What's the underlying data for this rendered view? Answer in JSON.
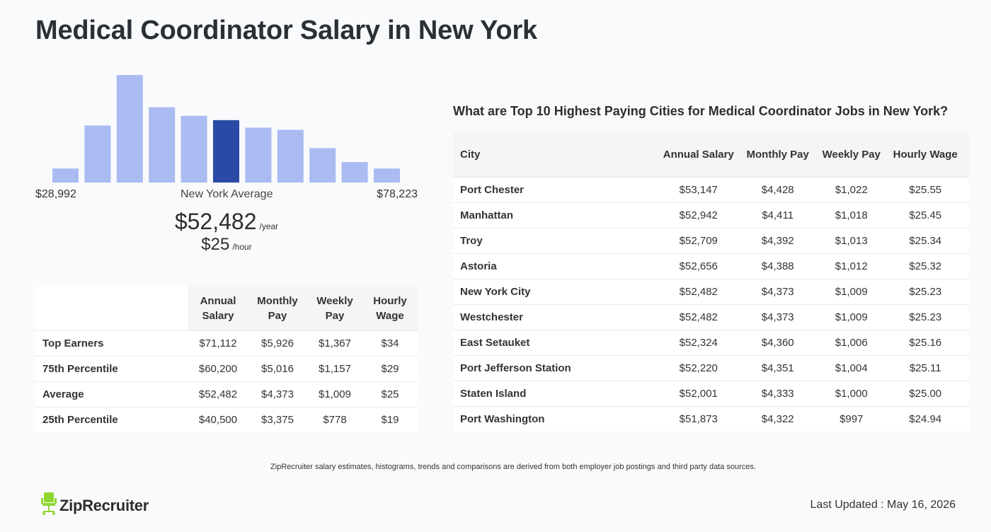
{
  "page": {
    "title": "Medical Coordinator Salary in New York"
  },
  "histogram": {
    "bars": [
      0.13,
      0.53,
      1.0,
      0.7,
      0.62,
      0.58,
      0.51,
      0.49,
      0.32,
      0.19,
      0.13
    ],
    "highlight_index": 5,
    "color": "#aabbf2",
    "highlight_color": "#2a4aa5",
    "min_label": "$28,992",
    "avg_label": "New York Average",
    "max_label": "$78,223"
  },
  "summary": {
    "annual": "$52,482",
    "annual_unit": "/year",
    "hourly": "$25",
    "hourly_unit": "/hour"
  },
  "percentile_table": {
    "headers": [
      "Annual Salary",
      "Monthly Pay",
      "Weekly Pay",
      "Hourly Wage"
    ],
    "rows": [
      {
        "label": "Top Earners",
        "values": [
          "$71,112",
          "$5,926",
          "$1,367",
          "$34"
        ]
      },
      {
        "label": "75th Percentile",
        "values": [
          "$60,200",
          "$5,016",
          "$1,157",
          "$29"
        ]
      },
      {
        "label": "Average",
        "values": [
          "$52,482",
          "$4,373",
          "$1,009",
          "$25"
        ]
      },
      {
        "label": "25th Percentile",
        "values": [
          "$40,500",
          "$3,375",
          "$778",
          "$19"
        ]
      }
    ]
  },
  "cities": {
    "heading": "What are Top 10 Highest Paying Cities for Medical Coordinator Jobs in New York?",
    "headers": [
      "City",
      "Annual Salary",
      "Monthly Pay",
      "Weekly Pay",
      "Hourly Wage"
    ],
    "rows": [
      {
        "city": "Port Chester",
        "values": [
          "$53,147",
          "$4,428",
          "$1,022",
          "$25.55"
        ]
      },
      {
        "city": "Manhattan",
        "values": [
          "$52,942",
          "$4,411",
          "$1,018",
          "$25.45"
        ]
      },
      {
        "city": "Troy",
        "values": [
          "$52,709",
          "$4,392",
          "$1,013",
          "$25.34"
        ]
      },
      {
        "city": "Astoria",
        "values": [
          "$52,656",
          "$4,388",
          "$1,012",
          "$25.32"
        ]
      },
      {
        "city": "New York City",
        "values": [
          "$52,482",
          "$4,373",
          "$1,009",
          "$25.23"
        ]
      },
      {
        "city": "Westchester",
        "values": [
          "$52,482",
          "$4,373",
          "$1,009",
          "$25.23"
        ]
      },
      {
        "city": "East Setauket",
        "values": [
          "$52,324",
          "$4,360",
          "$1,006",
          "$25.16"
        ]
      },
      {
        "city": "Port Jefferson Station",
        "values": [
          "$52,220",
          "$4,351",
          "$1,004",
          "$25.11"
        ]
      },
      {
        "city": "Staten Island",
        "values": [
          "$52,001",
          "$4,333",
          "$1,000",
          "$25.00"
        ]
      },
      {
        "city": "Port Washington",
        "values": [
          "$51,873",
          "$4,322",
          "$997",
          "$24.94"
        ]
      }
    ]
  },
  "footer": {
    "note": "ZipRecruiter salary estimates, histograms, trends and comparisons are derived from both employer job postings and third party data sources.",
    "logo_text": "ZipRecruiter",
    "logo_icon": "chair-icon",
    "logo_color": "#8fd62f",
    "updated": "Last Updated : May 16, 2026"
  }
}
